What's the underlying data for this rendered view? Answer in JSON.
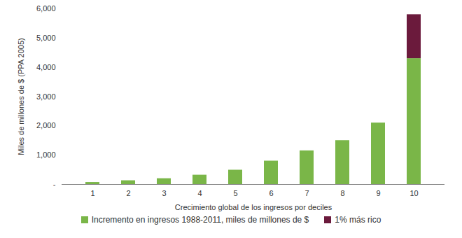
{
  "chart_data": {
    "type": "bar",
    "stacked": true,
    "x_label": "Crecimiento global de los ingresos por deciles",
    "y_label": "Miles de millones de $ (PPA 2005)",
    "categories": [
      "1",
      "2",
      "3",
      "4",
      "5",
      "6",
      "7",
      "8",
      "9",
      "10"
    ],
    "series": [
      {
        "name": "Incremento en ingresos 1988-2011, miles de millones de $",
        "color": "#7ab648",
        "values": [
          70,
          130,
          200,
          320,
          490,
          800,
          1150,
          1500,
          2100,
          4300
        ]
      },
      {
        "name": "1% más rico",
        "color": "#6b1a3c",
        "values": [
          null,
          null,
          null,
          null,
          null,
          null,
          null,
          null,
          null,
          1500
        ]
      }
    ],
    "ylim": [
      0,
      6000
    ],
    "yticks": [
      {
        "value": 0,
        "label": "-"
      },
      {
        "value": 1000,
        "label": "1,000"
      },
      {
        "value": 2000,
        "label": "2,000"
      },
      {
        "value": 3000,
        "label": "3,000"
      },
      {
        "value": 4000,
        "label": "4,000"
      },
      {
        "value": 5000,
        "label": "5,000"
      },
      {
        "value": 6000,
        "label": "6,000"
      }
    ],
    "grid": false,
    "legend": "bottom"
  }
}
